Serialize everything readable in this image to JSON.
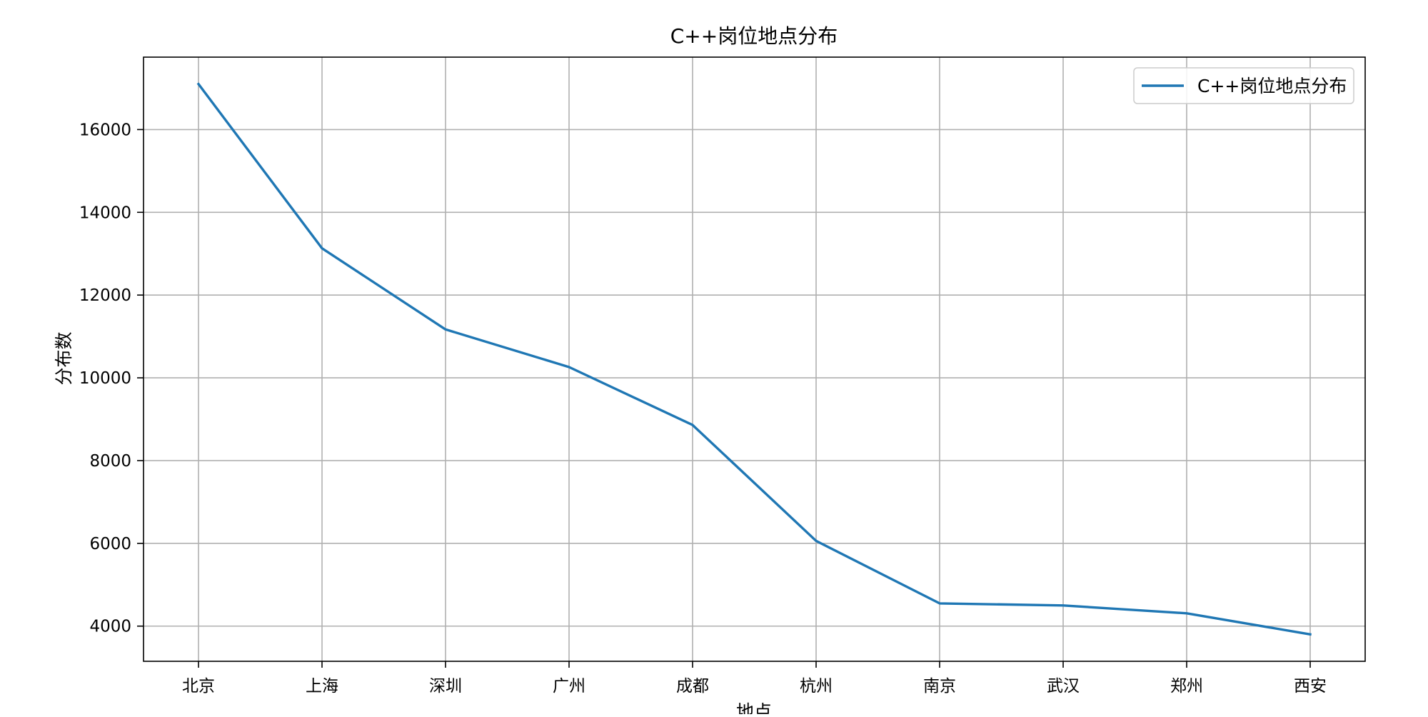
{
  "chart_data": {
    "type": "line",
    "title": "C++岗位地点分布",
    "xlabel": "地点",
    "ylabel": "分布数",
    "categories": [
      "北京",
      "上海",
      "深圳",
      "广州",
      "成都",
      "杭州",
      "南京",
      "武汉",
      "郑州",
      "西安"
    ],
    "series": [
      {
        "name": "C++岗位地点分布",
        "color": "#1f77b4",
        "values": [
          17100,
          13130,
          11170,
          10260,
          8860,
          6060,
          4550,
          4500,
          4310,
          3800
        ]
      }
    ],
    "yticks": [
      4000,
      6000,
      8000,
      10000,
      12000,
      14000,
      16000
    ],
    "ylim": [
      3150,
      17750
    ],
    "grid": true,
    "legend_position": "top-right"
  }
}
